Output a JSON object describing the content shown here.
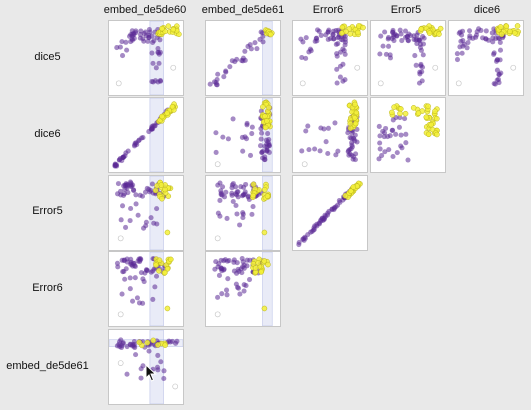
{
  "columns": [
    "embed_de5de60",
    "embed_de5de61",
    "Error6",
    "Error5",
    "dice6"
  ],
  "rows": [
    "dice5",
    "dice6",
    "Error5",
    "Error6",
    "embed_de5de61"
  ],
  "colors": {
    "group_a": "#5b2a96",
    "group_b": "#f3f03a",
    "group_b_stroke": "#b7b21c",
    "selection_band": "#9aa4dc",
    "outlier": "#c8c8c8"
  },
  "chart_data": {
    "type": "scatter",
    "matrix": "scatterplot-matrix",
    "x_variables": [
      "embed_de5de60",
      "embed_de5de61",
      "Error6",
      "Error5",
      "dice6"
    ],
    "y_variables": [
      "dice5",
      "dice6",
      "Error5",
      "Error6",
      "embed_de5de61"
    ],
    "series": [
      {
        "color": "#5b2a96"
      },
      {
        "color": "#f3f03a"
      }
    ],
    "cells_shown": [
      {
        "row": "dice5",
        "cols": [
          "embed_de5de60",
          "embed_de5de61",
          "Error6",
          "Error5",
          "dice6"
        ]
      },
      {
        "row": "dice6",
        "cols": [
          "embed_de5de60",
          "embed_de5de61",
          "Error6",
          "Error5"
        ]
      },
      {
        "row": "Error5",
        "cols": [
          "embed_de5de60",
          "embed_de5de61",
          "Error6"
        ]
      },
      {
        "row": "Error6",
        "cols": [
          "embed_de5de60",
          "embed_de5de61"
        ]
      },
      {
        "row": "embed_de5de61",
        "cols": [
          "embed_de5de60"
        ]
      }
    ],
    "selection_band_columns": [
      "embed_de5de60",
      "embed_de5de61"
    ],
    "grid": false,
    "axes_ticks": false
  },
  "cursor_icon": "arrow-pointer-icon"
}
